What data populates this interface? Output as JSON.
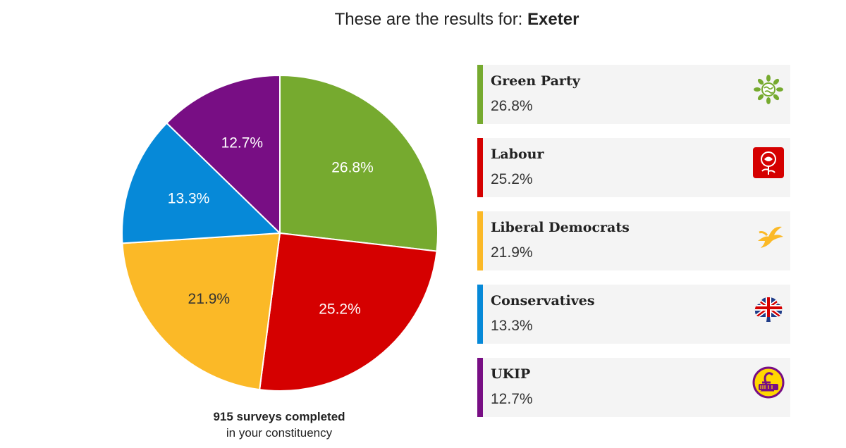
{
  "header": {
    "prefix": "These are the results for:",
    "constituency": "Exeter"
  },
  "chart_data": {
    "type": "pie",
    "title": "These are the results for: Exeter",
    "slices": [
      {
        "name": "Green Party",
        "value": 26.8,
        "label": "26.8%",
        "color": "#76aa2f",
        "label_color": "#ffffff",
        "logo": "green-party-logo-icon"
      },
      {
        "name": "Labour",
        "value": 25.2,
        "label": "25.2%",
        "color": "#d50000",
        "label_color": "#ffffff",
        "logo": "labour-rose-icon"
      },
      {
        "name": "Liberal Democrats",
        "value": 21.9,
        "label": "21.9%",
        "color": "#fbb927",
        "label_color": "#333333",
        "logo": "lib-dem-bird-icon"
      },
      {
        "name": "Conservatives",
        "value": 13.3,
        "label": "13.3%",
        "color": "#0689d8",
        "label_color": "#ffffff",
        "logo": "conservative-tree-icon"
      },
      {
        "name": "UKIP",
        "value": 12.7,
        "label": "12.7%",
        "color": "#780e84",
        "label_color": "#ffffff",
        "logo": "ukip-pound-icon"
      }
    ]
  },
  "footer": {
    "count_line": "915 surveys completed",
    "sub_line": "in your constituency"
  }
}
